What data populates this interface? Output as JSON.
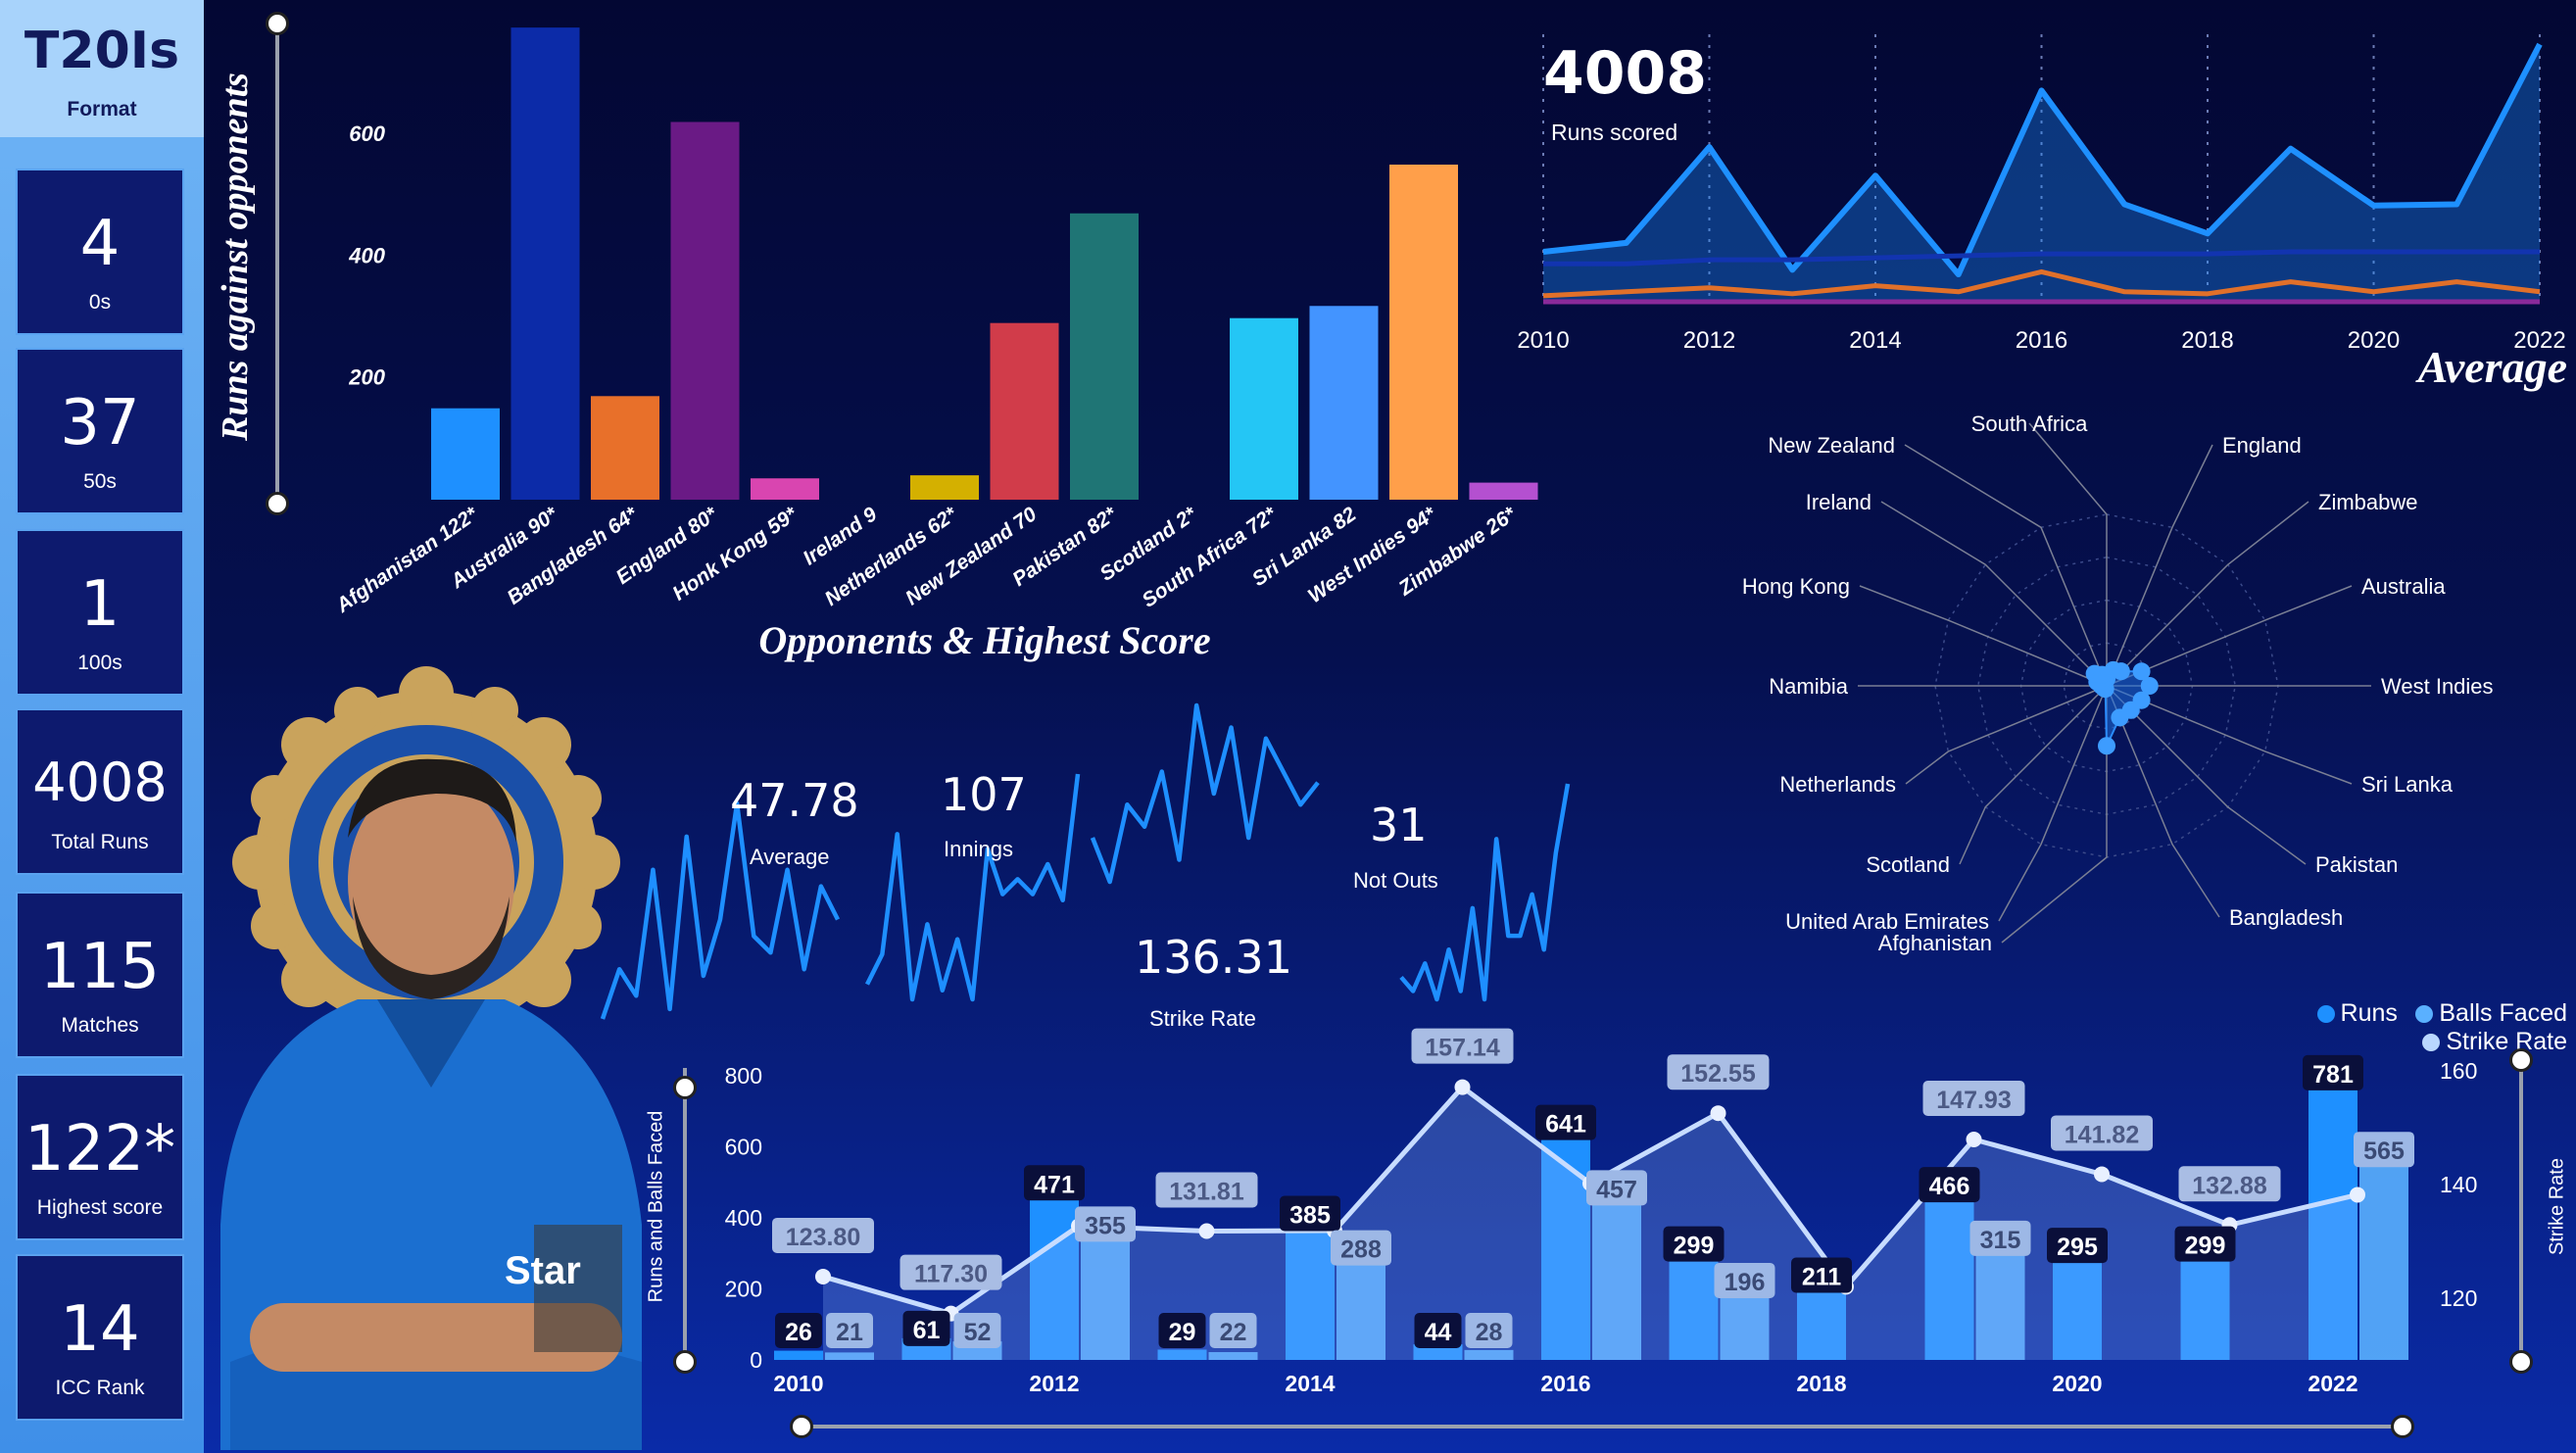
{
  "sidebar": {
    "format_title": "T20Is",
    "format_label": "Format",
    "kpis": [
      {
        "value": "4",
        "label": "0s"
      },
      {
        "value": "37",
        "label": "50s"
      },
      {
        "value": "1",
        "label": "100s"
      },
      {
        "value": "4008",
        "label": "Total Runs"
      },
      {
        "value": "115",
        "label": "Matches"
      },
      {
        "value": "122*",
        "label": "Highest score"
      },
      {
        "value": "14",
        "label": "ICC Rank"
      }
    ]
  },
  "opponents_chart": {
    "ylabel": "Runs against opponents",
    "xlabel": "Opponents & Highest Score"
  },
  "average_chart": {
    "kpi_value": "4008",
    "kpi_label": "Runs scored",
    "title": "Average"
  },
  "radar": {
    "labels": [
      "South Africa",
      "England",
      "Zimbabwe",
      "Australia",
      "West Indies",
      "Sri Lanka",
      "Pakistan",
      "Bangladesh",
      "Afghanistan",
      "United Arab Emirates",
      "Scotland",
      "Netherlands",
      "Namibia",
      "Hong Kong",
      "Ireland",
      "New Zealand"
    ]
  },
  "sparks": {
    "average": {
      "value": "47.78",
      "label": "Average"
    },
    "innings": {
      "value": "107",
      "label": "Innings"
    },
    "strike_rate": {
      "value": "136.31",
      "label": "Strike Rate"
    },
    "not_outs": {
      "value": "31",
      "label": "Not Outs"
    }
  },
  "combo_chart": {
    "legend": [
      "Runs",
      "Balls Faced",
      "Strike Rate"
    ],
    "left_axis_title": "Runs and Balls Faced",
    "right_axis_title": "Strike Rate"
  },
  "colors": {
    "runs": "#1e90ff",
    "balls_faced": "#5ab0ff",
    "strike_rate": "#b9d7ff",
    "sidebar_kpi_bg": "#0d1a6e"
  },
  "chart_data": [
    {
      "type": "bar",
      "title": "",
      "xlabel": "Opponents & Highest Score",
      "ylabel": "Runs against opponents",
      "ylim": [
        0,
        780
      ],
      "yticks": [
        200,
        400,
        600
      ],
      "categories": [
        "Afghanistan 122*",
        "Australia 90*",
        "Bangladesh 64*",
        "England 80*",
        "Honk Kong 59*",
        "Ireland 9",
        "Netherlands 62*",
        "New Zealand 70",
        "Pakistan 82*",
        "Scotland 2*",
        "South Africa 72*",
        "Sri Lanka 82",
        "West Indies 94*",
        "Zimbabwe 26*"
      ],
      "values": [
        150,
        775,
        170,
        620,
        35,
        0,
        40,
        290,
        470,
        0,
        298,
        318,
        550,
        28
      ],
      "bar_colors": [
        "#1e90ff",
        "#0c2ba8",
        "#e8702a",
        "#6a1a85",
        "#d945b0",
        "#1e90ff",
        "#d4b000",
        "#d13c4a",
        "#1f7575",
        "#1e90ff",
        "#24c6f5",
        "#4394ff",
        "#ff9f4a",
        "#b450d0"
      ]
    },
    {
      "type": "area",
      "title": "Average",
      "x": [
        2010,
        2011,
        2012,
        2013,
        2014,
        2015,
        2016,
        2017,
        2018,
        2019,
        2020,
        2021,
        2022
      ],
      "x_ticks": [
        2010,
        2012,
        2014,
        2016,
        2018,
        2020,
        2022
      ],
      "series": [
        {
          "values": [
            26,
            30.5,
            78.5,
            17,
            64.2,
            14.7,
            106.8,
            49.8,
            35.2,
            77.7,
            49.2,
            49.8,
            130
          ],
          "color": "#1e90ff"
        },
        {
          "values": [
            20,
            20,
            22,
            22,
            23,
            24,
            25,
            25,
            25,
            26,
            26,
            26,
            26
          ],
          "color": "#1234b0"
        },
        {
          "values": [
            4,
            6,
            8,
            5,
            9,
            6,
            16,
            6,
            5,
            11,
            6,
            11,
            6
          ],
          "color": "#e0702a"
        },
        {
          "values": [
            1,
            1,
            1,
            1,
            1,
            1,
            1,
            1,
            1,
            1,
            1,
            1,
            1
          ],
          "color": "#8a2a9a"
        }
      ],
      "ylim": [
        0,
        135
      ]
    },
    {
      "type": "radar",
      "categories": [
        "South Africa",
        "England",
        "Zimbabwe",
        "Australia",
        "West Indies",
        "Sri Lanka",
        "Pakistan",
        "Bangladesh",
        "Afghanistan",
        "United Arab Emirates",
        "Scotland",
        "Netherlands",
        "Namibia",
        "Hong Kong",
        "Ireland",
        "New Zealand"
      ],
      "values": [
        0.04,
        0.1,
        0.12,
        0.22,
        0.25,
        0.22,
        0.2,
        0.2,
        0.35,
        0.02,
        0.02,
        0.02,
        0.03,
        0.06,
        0.1,
        0.07
      ]
    },
    {
      "type": "line",
      "name": "sparklines",
      "series": [
        {
          "name": "Average",
          "values": [
            5,
            20,
            12,
            50,
            8,
            60,
            18,
            35,
            70,
            30,
            25,
            50,
            20,
            45,
            35
          ]
        },
        {
          "name": "Innings",
          "values": [
            10,
            20,
            60,
            5,
            30,
            8,
            25,
            5,
            55,
            40,
            45,
            40,
            50,
            38,
            80
          ]
        },
        {
          "name": "Strike Rate",
          "values": [
            30,
            10,
            45,
            35,
            60,
            20,
            90,
            50,
            80,
            30,
            75,
            60,
            45,
            55
          ]
        },
        {
          "name": "Not Outs",
          "values": [
            10,
            5,
            15,
            2,
            20,
            5,
            35,
            2,
            60,
            25,
            25,
            40,
            20,
            55,
            80
          ]
        }
      ]
    },
    {
      "type": "bar",
      "title": "",
      "x": [
        2010,
        2011,
        2012,
        2013,
        2014,
        2015,
        2016,
        2017,
        2018,
        2019,
        2020,
        2021,
        2022
      ],
      "x_ticks": [
        2010,
        2012,
        2014,
        2016,
        2018,
        2020,
        2022
      ],
      "series": [
        {
          "name": "Runs",
          "values": [
            26,
            61,
            471,
            29,
            385,
            44,
            641,
            299,
            211,
            466,
            295,
            299,
            781
          ]
        },
        {
          "name": "Balls Faced",
          "values": [
            21,
            52,
            355,
            22,
            288,
            28,
            457,
            196,
            0,
            315,
            0,
            0,
            565
          ]
        },
        {
          "name": "Strike Rate",
          "values": [
            123.8,
            117.3,
            132.7,
            131.81,
            131.9,
            157.14,
            140.2,
            152.55,
            122.0,
            147.93,
            141.82,
            132.88,
            138.2
          ]
        }
      ],
      "labels": {
        "runs": [
          "26",
          "61",
          "471",
          "29",
          "385",
          "44",
          "641",
          "299",
          "211",
          "466",
          "295",
          "299",
          "781"
        ],
        "balls": [
          "21",
          "52",
          "355",
          "22",
          "288",
          "28",
          "457",
          "196",
          "",
          "315",
          "",
          "",
          "565"
        ],
        "sr": [
          "123.80",
          "117.30",
          "",
          "131.81",
          "",
          "157.14",
          "",
          "152.55",
          "",
          "147.93",
          "141.82",
          "132.88",
          ""
        ]
      },
      "ylim": [
        0,
        800
      ],
      "yticks": [
        0,
        200,
        400,
        600,
        800
      ],
      "y2lim": [
        110,
        160
      ],
      "y2ticks": [
        120,
        140,
        160
      ],
      "ylabel": "Runs and Balls Faced",
      "y2label": "Strike Rate"
    }
  ]
}
